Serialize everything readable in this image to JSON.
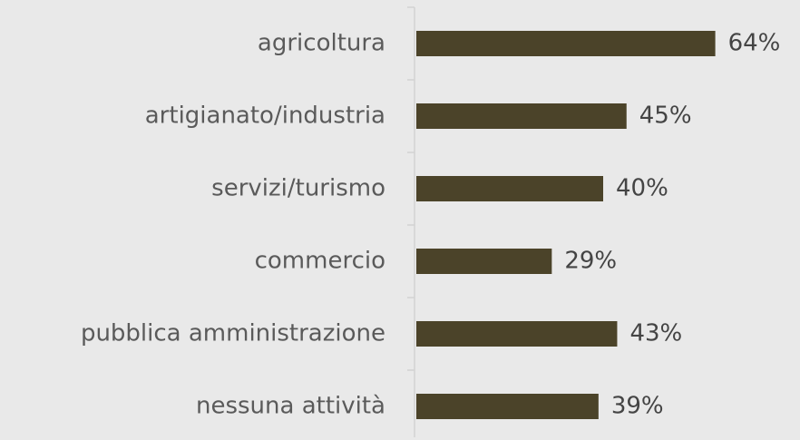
{
  "chart_data": {
    "type": "barh",
    "categories": [
      "agricoltura",
      "artigianato/industria",
      "servizi/turismo",
      "commercio",
      "pubblica amministrazione",
      "nessuna attività"
    ],
    "values": [
      64,
      45,
      40,
      29,
      43,
      39
    ],
    "value_labels": [
      "64%",
      "45%",
      "40%",
      "29%",
      "43%",
      "39%"
    ],
    "color": "#4b4329"
  }
}
